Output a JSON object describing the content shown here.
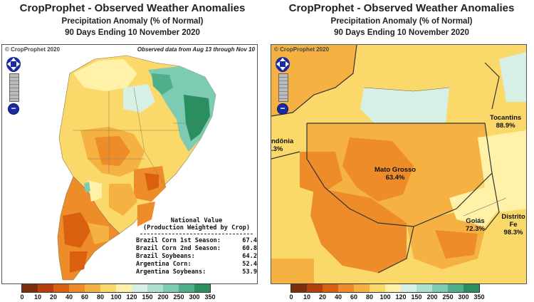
{
  "left": {
    "title": "CropProphet - Observed Weather Anomalies",
    "subtitle": "Precipitation Anomaly (% of Normal)",
    "period": "90 Days Ending 10 November 2020",
    "copyright": "© CropProphet 2020",
    "observed_note": "Observed data from Aug 13 through Nov 10",
    "national": {
      "title1": "National Value",
      "title2": "(Production Weighted by Crop)",
      "rows": [
        {
          "label": "Brazil Corn 1st Season:",
          "value": "67.4"
        },
        {
          "label": "Brazil Corn 2nd Season:",
          "value": "60.8"
        },
        {
          "label": "Brazil Soybeans:",
          "value": "64.2"
        },
        {
          "label": "Argentina Corn:",
          "value": "52.4"
        },
        {
          "label": "Argentina Soybeans:",
          "value": "53.9"
        }
      ]
    }
  },
  "right": {
    "title": "CropProphet - Observed Weather Anomalies",
    "subtitle": "Precipitation Anomaly (% of Normal)",
    "period": "90 Days Ending 10 November 2020",
    "copyright": "© CropProphet 2020",
    "regions": [
      {
        "name": "Mato Grosso",
        "value": "63.4%"
      },
      {
        "name": "Tocantins",
        "value": "88.9%"
      },
      {
        "name": "Goiás",
        "value": "72.3%"
      },
      {
        "name": "Distrito Fe",
        "value": "98.3%"
      },
      {
        "name": "ndônia",
        "value": ".3%"
      }
    ]
  },
  "legend": {
    "ticks": [
      "0",
      "10",
      "20",
      "40",
      "60",
      "80",
      "100",
      "120",
      "150",
      "200",
      "250",
      "300",
      "350"
    ],
    "colors": [
      "#7a2e0a",
      "#b4410c",
      "#d9600f",
      "#ef8c2a",
      "#f5b142",
      "#fbd86a",
      "#fff2a8",
      "#d6f0e6",
      "#aee0cf",
      "#7dcbb2",
      "#4faf8b",
      "#2a8e5e",
      "#0f6b3a"
    ]
  },
  "colors": {
    "water": "#ffffff",
    "dry_deep": "#d9600f",
    "dry": "#ef8c2a",
    "mid": "#f5b142",
    "near": "#fbd86a",
    "wet": "#7dcbb2",
    "wet_deep": "#2a8e5e"
  }
}
